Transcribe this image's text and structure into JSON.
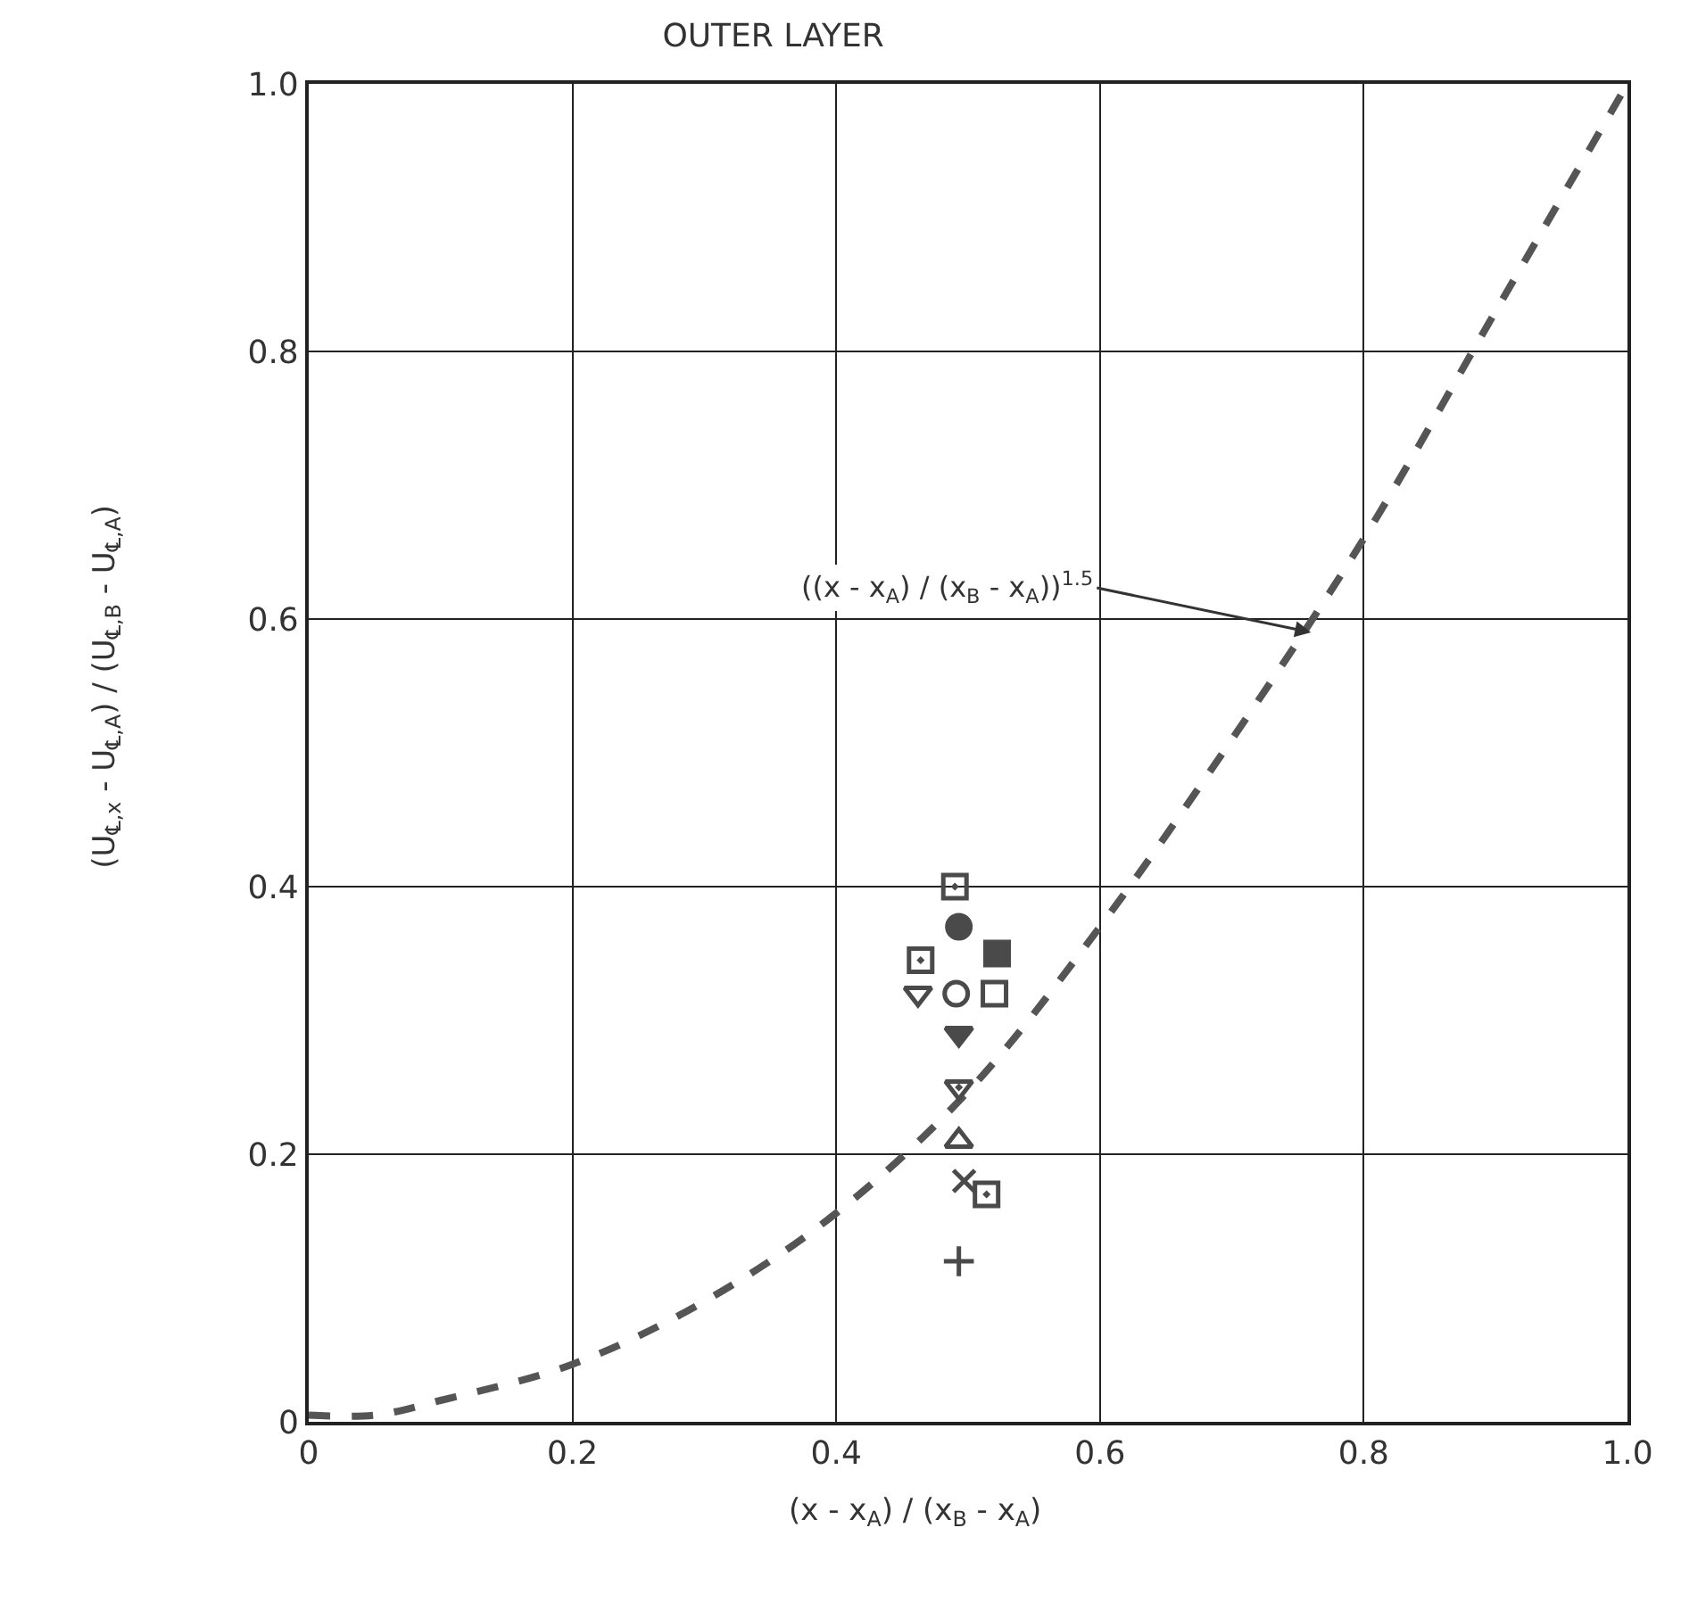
{
  "chart_data": {
    "type": "scatter",
    "title": "OUTER LAYER",
    "xlabel": "(x - x$_{A}$) / (x$_{B}$ - x$_{A}$)",
    "ylabel": "(U$_{℄,x}$ - U$_{℄,A}$) / (U$_{℄,B}$ - U$_{℄,A}$)",
    "xlim": [
      0,
      1
    ],
    "ylim": [
      0,
      1
    ],
    "xticks": [
      0,
      0.2,
      0.4,
      0.6,
      0.8,
      {
        "value": 1,
        "label": "1.0"
      }
    ],
    "yticks": [
      0,
      0.2,
      0.4,
      0.6,
      0.8,
      {
        "value": 1,
        "label": "1.0"
      }
    ],
    "grid": true,
    "legend": false,
    "annotations": [
      {
        "text": "((x - x$_{A}$) / (x$_{B}$ - x$_{A}$))$^{1.5}$",
        "x": 0.76,
        "y": 0.59
      }
    ],
    "series": [
      {
        "type": "line",
        "color": "#555555",
        "line_style": "dashed",
        "marker": "none",
        "x": [
          0,
          0.05,
          0.1,
          0.2,
          0.3,
          0.4,
          0.5,
          0.6,
          0.7,
          0.8,
          0.9,
          1.0
        ],
        "values": [
          0.005,
          0.005,
          0.016,
          0.043,
          0.09,
          0.156,
          0.247,
          0.37,
          0.51,
          0.66,
          0.83,
          1.0
        ]
      },
      {
        "color": "#4a4a4a",
        "marker": "square-half",
        "x": [
          0.49,
          0.464,
          0.514
        ],
        "values": [
          0.4,
          0.345,
          0.17
        ]
      },
      {
        "color": "#4a4a4a",
        "marker": "circle",
        "x": [
          0.493
        ],
        "values": [
          0.37
        ]
      },
      {
        "color": "#4a4a4a",
        "marker": "square",
        "x": [
          0.522
        ],
        "values": [
          0.35
        ]
      },
      {
        "color": "#4a4a4a",
        "marker": "triangle-down-open",
        "x": [
          0.462
        ],
        "values": [
          0.32
        ]
      },
      {
        "color": "#4a4a4a",
        "marker": "circle-open",
        "x": [
          0.491
        ],
        "values": [
          0.32
        ]
      },
      {
        "color": "#4a4a4a",
        "marker": "square-open",
        "x": [
          0.52
        ],
        "values": [
          0.32
        ]
      },
      {
        "color": "#4a4a4a",
        "marker": "triangle-down",
        "x": [
          0.493
        ],
        "values": [
          0.29
        ]
      },
      {
        "color": "#4a4a4a",
        "marker": "triangle-down-half",
        "x": [
          0.493
        ],
        "values": [
          0.25
        ]
      },
      {
        "color": "#4a4a4a",
        "marker": "triangle-up-open",
        "x": [
          0.493
        ],
        "values": [
          0.21
        ]
      },
      {
        "color": "#4a4a4a",
        "marker": "x",
        "x": [
          0.497
        ],
        "values": [
          0.18
        ]
      },
      {
        "color": "#4a4a4a",
        "marker": "cross",
        "x": [
          0.493
        ],
        "values": [
          0.12
        ]
      }
    ]
  }
}
